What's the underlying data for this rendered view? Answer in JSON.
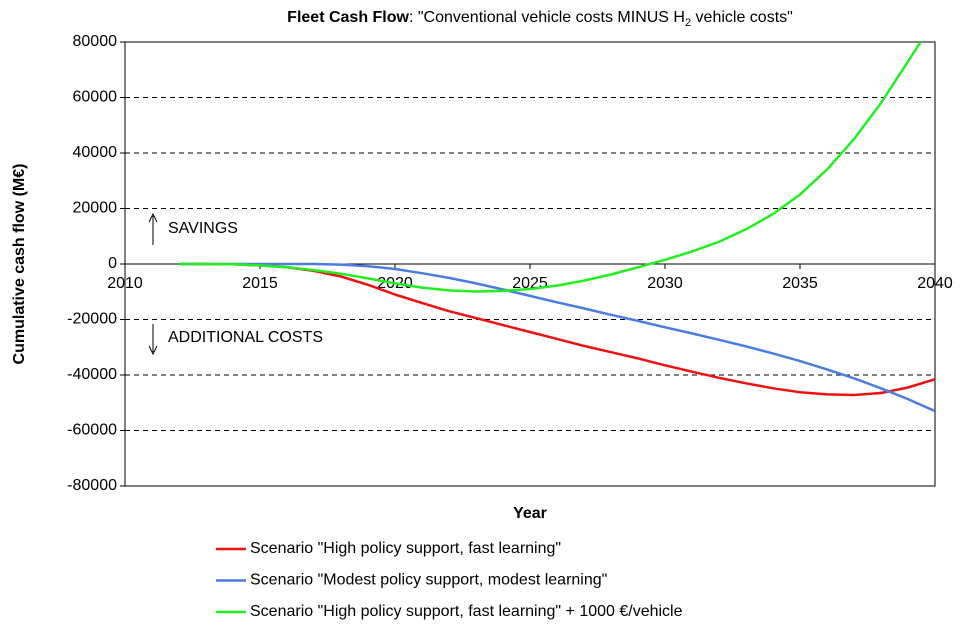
{
  "chart_data": {
    "type": "line",
    "title_parts": [
      "Fleet Cash Flow",
      ": \"Conventional vehicle costs MINUS H",
      "2",
      " vehicle costs\""
    ],
    "xlabel": "Year",
    "ylabel": "Cumulative cash flow (M€)",
    "annotations": [
      "SAVINGS",
      "ADDITIONAL COSTS"
    ],
    "x": [
      2012,
      2013,
      2014,
      2015,
      2016,
      2017,
      2018,
      2019,
      2020,
      2021,
      2022,
      2023,
      2024,
      2025,
      2026,
      2027,
      2028,
      2029,
      2030,
      2031,
      2032,
      2033,
      2034,
      2035,
      2036,
      2037,
      2038,
      2039,
      2040
    ],
    "series": [
      {
        "name": "Scenario \"High policy support, fast learning\"",
        "color": "#ee1111",
        "values": [
          0,
          0,
          -100,
          -500,
          -1200,
          -2500,
          -4500,
          -7500,
          -11000,
          -14000,
          -17000,
          -19500,
          -22000,
          -24500,
          -27000,
          -29500,
          -31800,
          -34000,
          -36500,
          -38800,
          -41000,
          -43000,
          -44800,
          -46200,
          -47000,
          -47200,
          -46500,
          -44500,
          -41500
        ]
      },
      {
        "name": "Scenario \"Modest policy support, modest learning\"",
        "color": "#4a7de0",
        "values": [
          0,
          0,
          0,
          0,
          0,
          0,
          -200,
          -800,
          -1800,
          -3300,
          -5000,
          -7000,
          -9200,
          -11500,
          -13800,
          -16000,
          -18300,
          -20500,
          -22800,
          -25000,
          -27300,
          -29700,
          -32200,
          -35000,
          -38000,
          -41200,
          -44800,
          -48700,
          -53000
        ]
      },
      {
        "name": "Scenario \"High policy support, fast learning\" + 1000 €/vehicle",
        "color": "#22ee22",
        "values": [
          0,
          0,
          -100,
          -500,
          -1200,
          -2200,
          -3500,
          -5200,
          -7000,
          -8500,
          -9500,
          -9900,
          -9700,
          -9000,
          -7800,
          -6000,
          -3800,
          -1200,
          1500,
          4500,
          8000,
          12500,
          18000,
          25000,
          34000,
          45000,
          58000,
          73000,
          88000
        ]
      }
    ],
    "xlim": [
      2010,
      2040
    ],
    "xticks": [
      2010,
      2015,
      2020,
      2025,
      2030,
      2035,
      2040
    ],
    "ylim": [
      -80000,
      80000
    ],
    "yticks": [
      -80000,
      -60000,
      -40000,
      -20000,
      0,
      20000,
      40000,
      60000,
      80000
    ],
    "grid": true,
    "legend": "bottom"
  }
}
